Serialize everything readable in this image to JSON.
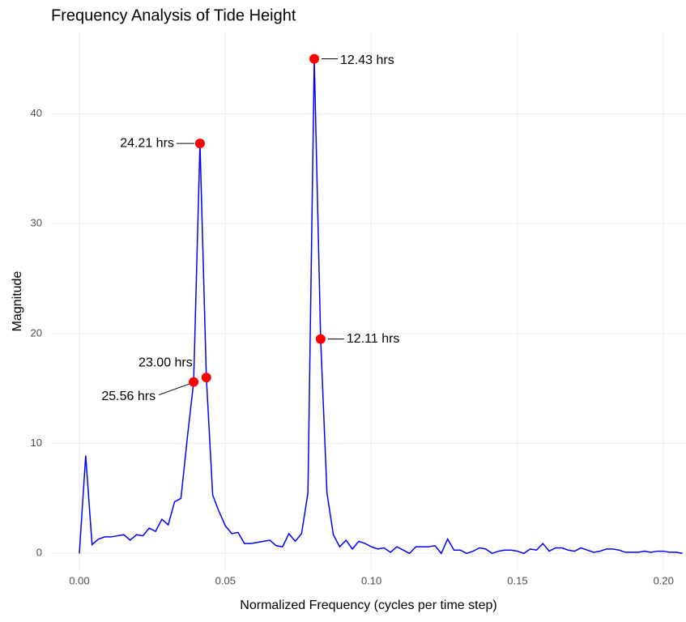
{
  "chart_data": {
    "type": "line",
    "title": "Frequency Analysis of Tide Height",
    "x_label": "Normalized Frequency (cycles per time step)",
    "y_label": "Magnitude",
    "x": [
      0,
      0.00217,
      0.00435,
      0.00652,
      0.0087,
      0.01087,
      0.01304,
      0.01522,
      0.01739,
      0.01957,
      0.02174,
      0.02391,
      0.02609,
      0.02826,
      0.03043,
      0.03261,
      0.03478,
      0.03696,
      0.03913,
      0.0413,
      0.04348,
      0.04565,
      0.04783,
      0.05,
      0.05217,
      0.05435,
      0.05652,
      0.0587,
      0.06087,
      0.06304,
      0.06522,
      0.06739,
      0.06957,
      0.07174,
      0.07391,
      0.07609,
      0.07826,
      0.08043,
      0.08261,
      0.08478,
      0.08696,
      0.08913,
      0.0913,
      0.09348,
      0.09565,
      0.09783,
      0.1,
      0.10217,
      0.10435,
      0.10652,
      0.1087,
      0.11087,
      0.11304,
      0.11522,
      0.11739,
      0.11957,
      0.12174,
      0.12391,
      0.12609,
      0.12826,
      0.13043,
      0.13261,
      0.13478,
      0.13696,
      0.13913,
      0.1413,
      0.14348,
      0.14565,
      0.14783,
      0.15,
      0.15217,
      0.15435,
      0.15652,
      0.1587,
      0.16087,
      0.16304,
      0.16522,
      0.16739,
      0.16957,
      0.17174,
      0.17391,
      0.17609,
      0.17826,
      0.18043,
      0.18261,
      0.18478,
      0.18696,
      0.18913,
      0.1913,
      0.19348,
      0.19565,
      0.19783,
      0.2,
      0.20217,
      0.20435,
      0.20652
    ],
    "series": [
      {
        "color": "#0000ff",
        "values": [
          0,
          8.9,
          0.8,
          1.3,
          1.5,
          1.5,
          1.6,
          1.7,
          1.2,
          1.7,
          1.6,
          2.3,
          2.0,
          3.1,
          2.6,
          4.7,
          5.0,
          10.5,
          15.6,
          37.3,
          16.0,
          5.3,
          3.8,
          2.5,
          1.8,
          1.9,
          0.9,
          0.9,
          1.0,
          1.1,
          1.2,
          0.7,
          0.6,
          1.8,
          1.1,
          1.8,
          5.5,
          45.0,
          19.5,
          5.5,
          1.7,
          0.6,
          1.2,
          0.4,
          1.1,
          0.9,
          0.6,
          0.4,
          0.5,
          0.1,
          0.6,
          0.3,
          0.0,
          0.6,
          0.6,
          0.6,
          0.7,
          0.0,
          1.3,
          0.3,
          0.3,
          0.0,
          0.2,
          0.5,
          0.4,
          0.0,
          0.2,
          0.3,
          0.3,
          0.2,
          0.0,
          0.4,
          0.3,
          0.9,
          0.2,
          0.5,
          0.5,
          0.3,
          0.2,
          0.5,
          0.3,
          0.1,
          0.2,
          0.4,
          0.4,
          0.3,
          0.1,
          0.1,
          0.1,
          0.2,
          0.1,
          0.2,
          0.2,
          0.1,
          0.1,
          0.0
        ]
      }
    ],
    "peaks": {
      "color": "#ff0000",
      "x": [
        0.0413,
        0.08043,
        0.08261,
        0.04348,
        0.03913
      ],
      "values": [
        37.3,
        45.0,
        19.5,
        16.0,
        15.6
      ],
      "labels": [
        "24.21 hrs",
        "12.43 hrs",
        "12.11 hrs",
        "23.00 hrs",
        "25.56 hrs"
      ]
    },
    "xlim": [
      -0.0097,
      0.2077
    ],
    "ylim": [
      -1.6,
      47.4
    ],
    "xticks": [
      {
        "value": 0,
        "label": "0.00"
      },
      {
        "value": 0.05,
        "label": "0.05"
      },
      {
        "value": 0.1,
        "label": "0.10"
      },
      {
        "value": 0.15,
        "label": "0.15"
      },
      {
        "value": 0.2,
        "label": "0.20"
      }
    ],
    "yticks": [
      0,
      10,
      20,
      30,
      40
    ],
    "grid": true
  }
}
